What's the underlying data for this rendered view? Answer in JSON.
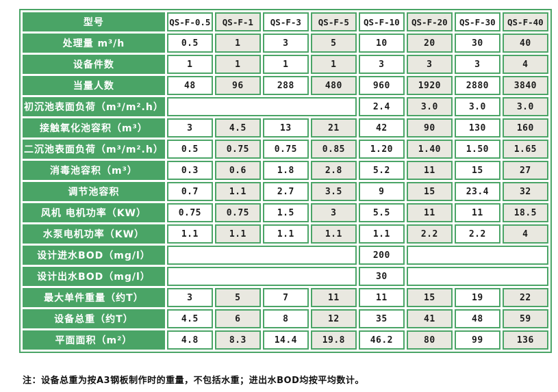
{
  "colors": {
    "green": "#4aa466",
    "light_cell": "#e9e8e0",
    "white_cell": "#ffffff",
    "header_text": "#ffffff",
    "data_text": "#1b1b1b"
  },
  "header": {
    "label": "型号",
    "models": [
      "QS-F-0.5",
      "QS-F-1",
      "QS-F-3",
      "QS-F-5",
      "QS-F-10",
      "QS-F-20",
      "QS-F-30",
      "QS-F-40"
    ]
  },
  "rows": [
    {
      "label": "处理量 m³/h",
      "type": "normal",
      "values": [
        "0.5",
        "1",
        "3",
        "5",
        "10",
        "20",
        "30",
        "40"
      ]
    },
    {
      "label": "设备件数",
      "type": "normal",
      "values": [
        "1",
        "1",
        "1",
        "1",
        "3",
        "3",
        "3",
        "4"
      ]
    },
    {
      "label": "当量人数",
      "type": "normal",
      "values": [
        "48",
        "96",
        "288",
        "480",
        "960",
        "1920",
        "2880",
        "3840"
      ]
    },
    {
      "label": "初沉池表面负荷（m³/m².h）",
      "type": "merged_left",
      "empty_span": 4,
      "values": [
        "2.4",
        "3.0",
        "3.0",
        "3.0"
      ]
    },
    {
      "label": "接触氧化池容积（m³）",
      "type": "normal",
      "values": [
        "3",
        "4.5",
        "13",
        "21",
        "42",
        "90",
        "130",
        "160"
      ]
    },
    {
      "label": "二沉池表面负荷（m³/m².h）",
      "type": "normal",
      "values": [
        "0.5",
        "0.75",
        "0.75",
        "0.85",
        "1.20",
        "1.40",
        "1.50",
        "1.65"
      ]
    },
    {
      "label": "消毒池容积（m³）",
      "type": "normal",
      "values": [
        "0.3",
        "0.6",
        "1.8",
        "2.8",
        "5.2",
        "11",
        "15",
        "27"
      ]
    },
    {
      "label": "调节池容积",
      "type": "normal",
      "values": [
        "0.7",
        "1.1",
        "2.7",
        "3.5",
        "9",
        "15",
        "23.4",
        "32"
      ]
    },
    {
      "label": "风机 电机功率（KW）",
      "type": "normal",
      "values": [
        "0.75",
        "0.75",
        "1.5",
        "3",
        "5.5",
        "11",
        "11",
        "18.5"
      ]
    },
    {
      "label": "水泵电机功率（KW）",
      "type": "normal",
      "values": [
        "1.1",
        "1.1",
        "1.1",
        "1.1",
        "1.1",
        "2.2",
        "2.2",
        "4"
      ]
    },
    {
      "label": "设计进水BOD（mg/l）",
      "type": "single_value",
      "value": "200"
    },
    {
      "label": "设计出水BOD（mg/l）",
      "type": "single_value",
      "value": "30"
    },
    {
      "label": "最大单件重量（约T）",
      "type": "normal",
      "values": [
        "3",
        "5",
        "7",
        "11",
        "11",
        "15",
        "19",
        "22"
      ]
    },
    {
      "label": "设备总重（约T）",
      "type": "normal",
      "values": [
        "4.5",
        "6",
        "8",
        "12",
        "35",
        "41",
        "48",
        "59"
      ]
    },
    {
      "label": "平面面积（m²）",
      "type": "normal",
      "values": [
        "4.8",
        "8.3",
        "14.4",
        "19.8",
        "46.2",
        "80",
        "99",
        "136"
      ]
    }
  ],
  "note": "注：设备总重为按A3钢板制作时的重量，不包括水重；进出水BOD均按平均数计。"
}
